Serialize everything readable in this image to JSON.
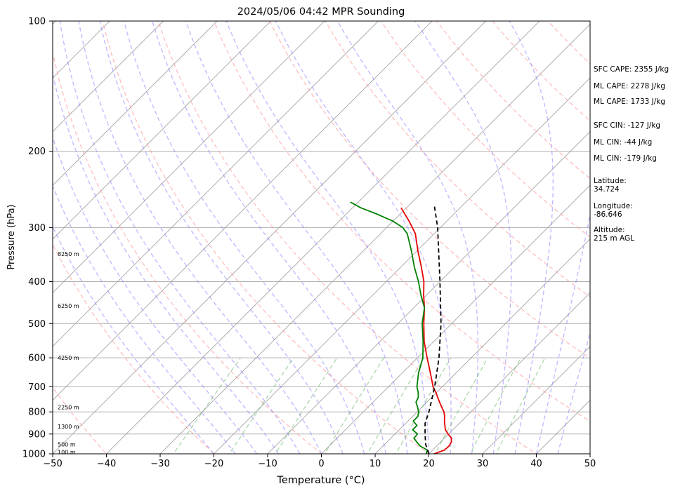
{
  "chart_data": {
    "type": "line",
    "title": "2024/05/06 04:42 MPR Sounding",
    "xlabel": "Temperature (°C)",
    "ylabel": "Pressure (hPa)",
    "xlim": [
      -50,
      50
    ],
    "ylim": [
      1000,
      100
    ],
    "y_scale": "log",
    "x_ticks": [
      -50,
      -40,
      -30,
      -20,
      -10,
      0,
      10,
      20,
      30,
      40,
      50
    ],
    "y_ticks": [
      1000,
      900,
      800,
      700,
      600,
      500,
      400,
      300,
      200,
      100
    ],
    "height_labels": [
      {
        "p": 990,
        "text": "100 m"
      },
      {
        "p": 950,
        "text": "500 m"
      },
      {
        "p": 865,
        "text": "1300 m"
      },
      {
        "p": 780,
        "text": "2250 m"
      },
      {
        "p": 600,
        "text": "4250 m"
      },
      {
        "p": 455,
        "text": "6250 m"
      },
      {
        "p": 345,
        "text": "8250 m"
      }
    ],
    "series": [
      {
        "role": "temperature",
        "color": "#e60000",
        "points": [
          [
            1000,
            21.0
          ],
          [
            980,
            22.2
          ],
          [
            960,
            22.3
          ],
          [
            940,
            22.0
          ],
          [
            920,
            21.3
          ],
          [
            900,
            19.9
          ],
          [
            880,
            18.6
          ],
          [
            860,
            17.7
          ],
          [
            840,
            16.8
          ],
          [
            820,
            16.0
          ],
          [
            800,
            15.0
          ],
          [
            780,
            13.7
          ],
          [
            760,
            12.4
          ],
          [
            740,
            11.1
          ],
          [
            720,
            9.8
          ],
          [
            700,
            8.3
          ],
          [
            650,
            5.2
          ],
          [
            600,
            1.8
          ],
          [
            550,
            -1.8
          ],
          [
            500,
            -5.2
          ],
          [
            460,
            -8.0
          ],
          [
            430,
            -10.5
          ],
          [
            400,
            -13.0
          ],
          [
            370,
            -16.2
          ],
          [
            340,
            -19.8
          ],
          [
            310,
            -23.5
          ],
          [
            290,
            -27.0
          ],
          [
            270,
            -31.0
          ]
        ]
      },
      {
        "role": "dewpoint",
        "color": "#008000",
        "points": [
          [
            1000,
            19.5
          ],
          [
            980,
            19.0
          ],
          [
            960,
            17.0
          ],
          [
            940,
            15.6
          ],
          [
            920,
            14.3
          ],
          [
            900,
            14.2
          ],
          [
            880,
            12.5
          ],
          [
            860,
            12.5
          ],
          [
            840,
            11.0
          ],
          [
            820,
            11.0
          ],
          [
            800,
            10.3
          ],
          [
            780,
            9.2
          ],
          [
            760,
            8.0
          ],
          [
            740,
            7.5
          ],
          [
            720,
            6.5
          ],
          [
            700,
            5.3
          ],
          [
            650,
            3.0
          ],
          [
            600,
            1.0
          ],
          [
            550,
            -2.0
          ],
          [
            500,
            -5.5
          ],
          [
            460,
            -8.0
          ],
          [
            430,
            -11.0
          ],
          [
            400,
            -14.0
          ],
          [
            370,
            -17.5
          ],
          [
            340,
            -21.0
          ],
          [
            310,
            -25.0
          ],
          [
            300,
            -27.0
          ],
          [
            290,
            -30.0
          ],
          [
            280,
            -34.0
          ],
          [
            270,
            -38.5
          ],
          [
            262,
            -41.5
          ]
        ]
      },
      {
        "role": "parcel",
        "color": "#000000",
        "dashed": true,
        "points": [
          [
            1000,
            20.0
          ],
          [
            950,
            17.6
          ],
          [
            900,
            15.6
          ],
          [
            850,
            13.6
          ],
          [
            800,
            12.2
          ],
          [
            700,
            8.6
          ],
          [
            600,
            4.0
          ],
          [
            500,
            -2.0
          ],
          [
            400,
            -10.0
          ],
          [
            300,
            -20.5
          ],
          [
            265,
            -25.5
          ]
        ]
      }
    ],
    "annotations": [
      "SFC CAPE: 2355 J/kg",
      "ML CAPE: 2278 J/kg",
      "ML CAPE: 1733 J/kg",
      "SFC CIN: -127 J/kg",
      "ML CIN: -44 J/kg",
      "ML CIN: -179 J/kg",
      "Latitude:",
      "34.724",
      "Longitude:",
      "-86.646",
      "Altitude:",
      "215 m AGL"
    ],
    "grid": true,
    "background_lines": [
      "isotherms",
      "dry adiabats",
      "moist adiabats",
      "mixing ratio lines"
    ]
  }
}
